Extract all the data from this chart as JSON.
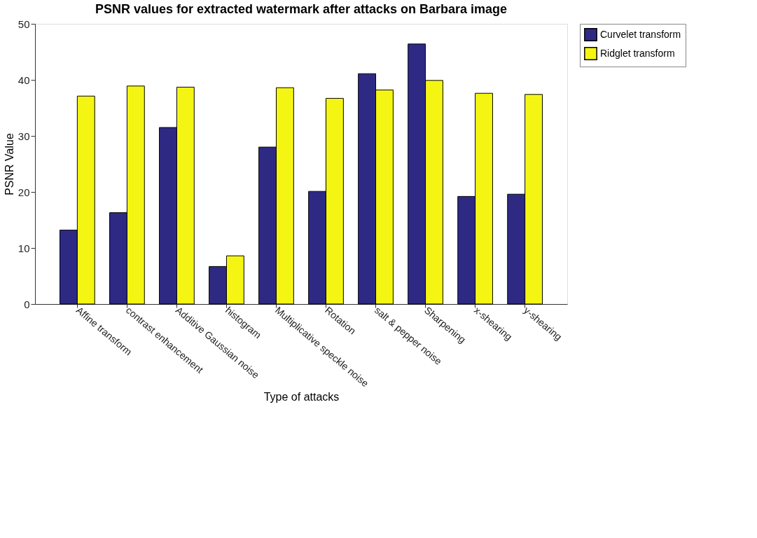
{
  "chart_data": {
    "type": "bar",
    "title": "PSNR values for extracted watermark after attacks on Barbara image",
    "xlabel": "Type of attacks",
    "ylabel": "PSNR Value",
    "categories": [
      "Affine transform",
      "contrast enhancement",
      "Additive Gaussian noise",
      "histogram",
      "Multiplicative speckle noise",
      "Rotation",
      "salt & pepper noise",
      "Sharpening",
      "x-shearing",
      "y-shearing"
    ],
    "series": [
      {
        "name": "Curvelet transform",
        "color": "#2e2a84",
        "values": [
          13.2,
          16.3,
          31.5,
          6.7,
          28.0,
          20.1,
          41.1,
          46.4,
          19.2,
          19.6
        ]
      },
      {
        "name": "Ridglet transform",
        "color": "#f5f514",
        "values": [
          37.1,
          38.9,
          38.7,
          8.6,
          38.6,
          36.7,
          38.2,
          39.9,
          37.6,
          37.4
        ]
      }
    ],
    "ylim": [
      0,
      50
    ],
    "yticks": [
      0,
      10,
      20,
      30,
      40,
      50
    ],
    "grid": false,
    "legend": "right"
  }
}
